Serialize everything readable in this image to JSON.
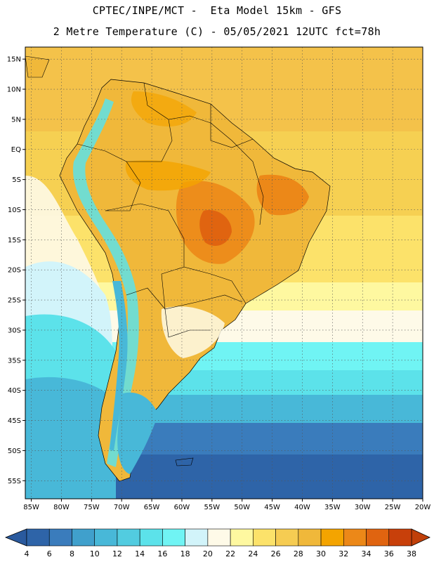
{
  "header": {
    "line1": "CPTEC/INPE/MCT -  Eta Model 15km - GFS",
    "line2": "2 Metre Temperature (C) - 05/05/2021 12UTC fct=78h"
  },
  "map": {
    "lon_range": [
      -86,
      -20
    ],
    "lat_range": [
      -58,
      17
    ],
    "lon_ticks": [
      {
        "value": -85,
        "label": "85W"
      },
      {
        "value": -80,
        "label": "80W"
      },
      {
        "value": -75,
        "label": "75W"
      },
      {
        "value": -70,
        "label": "70W"
      },
      {
        "value": -65,
        "label": "65W"
      },
      {
        "value": -60,
        "label": "60W"
      },
      {
        "value": -55,
        "label": "55W"
      },
      {
        "value": -50,
        "label": "50W"
      },
      {
        "value": -45,
        "label": "45W"
      },
      {
        "value": -40,
        "label": "40W"
      },
      {
        "value": -35,
        "label": "35W"
      },
      {
        "value": -30,
        "label": "30W"
      },
      {
        "value": -25,
        "label": "25W"
      },
      {
        "value": -20,
        "label": "20W"
      }
    ],
    "lat_ticks": [
      {
        "value": 15,
        "label": "15N"
      },
      {
        "value": 10,
        "label": "10N"
      },
      {
        "value": 5,
        "label": "5N"
      },
      {
        "value": 0,
        "label": "EQ"
      },
      {
        "value": -5,
        "label": "5S"
      },
      {
        "value": -10,
        "label": "10S"
      },
      {
        "value": -15,
        "label": "15S"
      },
      {
        "value": -20,
        "label": "20S"
      },
      {
        "value": -25,
        "label": "25S"
      },
      {
        "value": -30,
        "label": "30S"
      },
      {
        "value": -35,
        "label": "35S"
      },
      {
        "value": -40,
        "label": "40S"
      },
      {
        "value": -45,
        "label": "45S"
      },
      {
        "value": -50,
        "label": "50S"
      },
      {
        "value": -55,
        "label": "55S"
      }
    ]
  },
  "colorbar": {
    "labels": [
      "4",
      "6",
      "8",
      "10",
      "12",
      "14",
      "16",
      "18",
      "20",
      "22",
      "24",
      "26",
      "28",
      "30",
      "32",
      "34",
      "36",
      "38"
    ],
    "low_color": "#2a5a9e",
    "high_color": "#c0400a",
    "colors": [
      "#2e64a8",
      "#3a7cbc",
      "#40a0cc",
      "#48b8d8",
      "#52cce0",
      "#5ce2ea",
      "#70f4f4",
      "#d2f4fa",
      "#fefae8",
      "#fef8a0",
      "#fce26a",
      "#f6cc52",
      "#f0b83a",
      "#f4a400",
      "#ec8818",
      "#e06410",
      "#c8400a"
    ]
  }
}
